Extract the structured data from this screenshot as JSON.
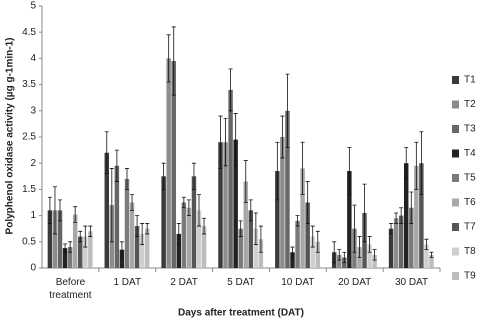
{
  "chart_data": {
    "type": "bar",
    "y_label": "Polyphenol oxidase  activity (µg g-1min-1)",
    "x_label": "Days after treatment (DAT)",
    "categories": [
      "Before treatment",
      "1 DAT",
      "2 DAT",
      "5 DAT",
      "10 DAT",
      "20 DAT",
      "30 DAT"
    ],
    "ylim": [
      0,
      5
    ],
    "yticks": [
      0,
      0.5,
      1,
      1.5,
      2,
      2.5,
      3,
      3.5,
      4,
      4.5,
      5
    ],
    "legend": "right",
    "series": [
      {
        "name": "T1",
        "color": "#3a3a3a",
        "values": [
          1.1,
          2.2,
          1.75,
          2.4,
          1.85,
          0.3,
          0.75
        ],
        "errors": [
          0.25,
          0.4,
          0.25,
          0.5,
          0.55,
          0.2,
          0.1
        ]
      },
      {
        "name": "T2",
        "color": "#8c8c8c",
        "values": [
          1.1,
          1.2,
          4.0,
          2.4,
          2.5,
          0.25,
          0.95
        ],
        "errors": [
          0.45,
          0.7,
          0.45,
          0.45,
          0.4,
          0.1,
          0.1
        ]
      },
      {
        "name": "T3",
        "color": "#666666",
        "values": [
          1.1,
          1.95,
          3.95,
          3.4,
          3.0,
          0.2,
          1.0
        ],
        "errors": [
          0.2,
          0.3,
          0.65,
          0.4,
          0.7,
          0.1,
          0.15
        ]
      },
      {
        "name": "T4",
        "color": "#222222",
        "values": [
          0.38,
          0.35,
          0.65,
          2.45,
          0.3,
          1.85,
          2.0
        ],
        "errors": [
          0.08,
          0.15,
          0.2,
          0.5,
          0.1,
          0.45,
          0.3
        ]
      },
      {
        "name": "T5",
        "color": "#7a7a7a",
        "values": [
          0.4,
          1.7,
          1.25,
          0.75,
          0.9,
          0.75,
          1.15
        ],
        "errors": [
          0.1,
          0.2,
          0.1,
          0.15,
          0.1,
          0.45,
          0.3
        ]
      },
      {
        "name": "T6",
        "color": "#a8a8a8",
        "values": [
          1.02,
          1.25,
          1.15,
          1.65,
          1.9,
          0.4,
          1.95
        ],
        "errors": [
          0.15,
          0.15,
          0.15,
          0.4,
          0.5,
          0.2,
          0.45
        ]
      },
      {
        "name": "T7",
        "color": "#555555",
        "values": [
          0.6,
          0.8,
          1.75,
          1.1,
          1.25,
          1.05,
          2.0
        ],
        "errors": [
          0.1,
          0.2,
          0.25,
          0.2,
          0.4,
          0.55,
          0.6
        ]
      },
      {
        "name": "T8",
        "color": "#cfcfcf",
        "values": [
          0.6,
          0.65,
          1.1,
          0.75,
          0.6,
          0.45,
          0.45
        ],
        "errors": [
          0.2,
          0.2,
          0.3,
          0.3,
          0.2,
          0.15,
          0.1
        ]
      },
      {
        "name": "T9",
        "color": "#bdbdbd",
        "values": [
          0.7,
          0.75,
          0.8,
          0.55,
          0.5,
          0.25,
          0.25
        ],
        "errors": [
          0.1,
          0.1,
          0.15,
          0.25,
          0.2,
          0.1,
          0.05
        ]
      }
    ]
  }
}
